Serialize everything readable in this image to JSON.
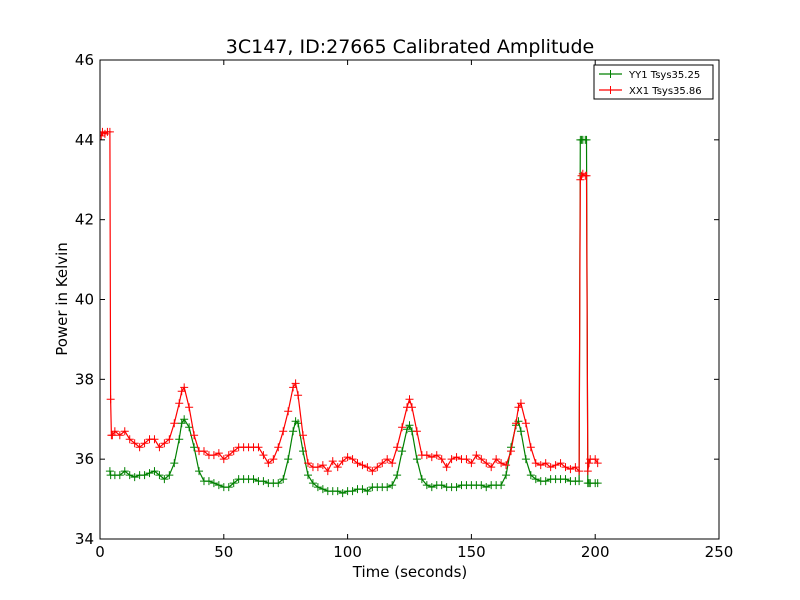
{
  "chart_data": {
    "type": "line",
    "title": "3C147, ID:27665 Calibrated Amplitude",
    "xlabel": "Time (seconds)",
    "ylabel": "Power in Kelvin",
    "xlim": [
      0,
      250
    ],
    "ylim": [
      34,
      46
    ],
    "xticks": [
      "0",
      "50",
      "100",
      "150",
      "200",
      "250"
    ],
    "yticks": [
      "34",
      "36",
      "38",
      "40",
      "42",
      "44",
      "46"
    ],
    "grid": false,
    "legend_position": "top-right",
    "marker": "plus",
    "series": [
      {
        "name": "YY1 Tsys35.25",
        "color": "#008000",
        "x": [
          4,
          4.3,
          6,
          8,
          10,
          12,
          14,
          16,
          18,
          20,
          22,
          24,
          26,
          28,
          30,
          32,
          33,
          34,
          36,
          38,
          40,
          42,
          44,
          46,
          48,
          50,
          52,
          54,
          56,
          58,
          60,
          62,
          64,
          66,
          68,
          70,
          72,
          74,
          76,
          78,
          79,
          80,
          82,
          84,
          86,
          88,
          90,
          92,
          94,
          96,
          98,
          100,
          102,
          104,
          106,
          108,
          110,
          112,
          114,
          116,
          118,
          120,
          122,
          124,
          125,
          126,
          128,
          130,
          132,
          134,
          136,
          138,
          140,
          142,
          144,
          146,
          148,
          150,
          152,
          154,
          156,
          158,
          160,
          162,
          164,
          166,
          168,
          169,
          170,
          172,
          174,
          176,
          178,
          180,
          182,
          184,
          186,
          188,
          190,
          192,
          193.5,
          194,
          194.5,
          195,
          196,
          196.5,
          197,
          197.5,
          198,
          200,
          201
        ],
        "y": [
          35.7,
          35.6,
          35.6,
          35.6,
          35.7,
          35.6,
          35.55,
          35.6,
          35.6,
          35.65,
          35.7,
          35.6,
          35.5,
          35.6,
          35.9,
          36.5,
          36.9,
          37.0,
          36.8,
          36.3,
          35.7,
          35.45,
          35.45,
          35.4,
          35.35,
          35.3,
          35.3,
          35.4,
          35.5,
          35.5,
          35.5,
          35.5,
          35.45,
          35.45,
          35.4,
          35.4,
          35.4,
          35.5,
          36.0,
          36.7,
          36.95,
          36.9,
          36.2,
          35.6,
          35.4,
          35.3,
          35.25,
          35.2,
          35.2,
          35.2,
          35.15,
          35.2,
          35.2,
          35.25,
          35.25,
          35.2,
          35.3,
          35.3,
          35.3,
          35.3,
          35.35,
          35.6,
          36.2,
          36.75,
          36.85,
          36.7,
          36.0,
          35.5,
          35.35,
          35.3,
          35.35,
          35.35,
          35.3,
          35.3,
          35.3,
          35.35,
          35.35,
          35.35,
          35.35,
          35.35,
          35.3,
          35.35,
          35.35,
          35.35,
          35.6,
          36.3,
          36.85,
          36.95,
          36.7,
          36.0,
          35.6,
          35.5,
          35.45,
          35.45,
          35.5,
          35.5,
          35.5,
          35.5,
          35.45,
          35.45,
          35.45,
          44.0,
          44.0,
          44.0,
          44.0,
          44.0,
          35.4,
          35.4,
          35.4,
          35.4,
          35.4
        ]
      },
      {
        "name": "XX1 Tsys35.86",
        "color": "#ff0000",
        "x": [
          0.5,
          1,
          2,
          3,
          4,
          4.3,
          4.6,
          5,
          6,
          8,
          10,
          12,
          14,
          16,
          18,
          20,
          22,
          24,
          26,
          28,
          30,
          32,
          33,
          34,
          36,
          38,
          40,
          42,
          44,
          46,
          48,
          50,
          52,
          54,
          56,
          58,
          60,
          62,
          64,
          66,
          68,
          70,
          72,
          74,
          76,
          78,
          79,
          80,
          82,
          84,
          86,
          88,
          90,
          92,
          94,
          96,
          98,
          100,
          102,
          104,
          106,
          108,
          110,
          112,
          114,
          116,
          118,
          120,
          122,
          124,
          125,
          126,
          128,
          130,
          132,
          134,
          136,
          138,
          140,
          142,
          144,
          146,
          148,
          150,
          152,
          154,
          156,
          158,
          160,
          162,
          164,
          166,
          168,
          169,
          170,
          172,
          174,
          176,
          178,
          180,
          182,
          184,
          186,
          188,
          190,
          192,
          193.5,
          194,
          194.5,
          195,
          196,
          196.5,
          197,
          197.5,
          198,
          200,
          201
        ],
        "y": [
          44.1,
          44.2,
          44.15,
          44.2,
          44.2,
          37.5,
          36.6,
          36.6,
          36.7,
          36.6,
          36.7,
          36.5,
          36.4,
          36.3,
          36.4,
          36.5,
          36.5,
          36.3,
          36.4,
          36.5,
          36.9,
          37.4,
          37.7,
          37.8,
          37.3,
          36.6,
          36.2,
          36.2,
          36.1,
          36.1,
          36.15,
          36.0,
          36.1,
          36.2,
          36.3,
          36.3,
          36.3,
          36.3,
          36.3,
          36.1,
          35.9,
          36.0,
          36.3,
          36.7,
          37.2,
          37.8,
          37.9,
          37.6,
          36.6,
          35.9,
          35.8,
          35.8,
          35.85,
          35.7,
          35.95,
          35.8,
          35.95,
          36.05,
          36.0,
          35.9,
          35.85,
          35.8,
          35.7,
          35.8,
          35.9,
          36.0,
          35.9,
          36.3,
          36.8,
          37.3,
          37.5,
          37.3,
          36.7,
          36.1,
          36.1,
          36.05,
          36.1,
          36.0,
          35.8,
          36.0,
          36.05,
          36.0,
          36.0,
          35.9,
          36.1,
          36.0,
          35.9,
          35.8,
          36.0,
          35.9,
          35.85,
          36.2,
          36.9,
          37.3,
          37.4,
          36.9,
          36.3,
          35.9,
          35.85,
          35.9,
          35.8,
          35.85,
          35.9,
          35.8,
          35.75,
          35.8,
          35.7,
          43.0,
          43.1,
          43.15,
          43.1,
          43.1,
          35.7,
          35.9,
          36.0,
          36.0,
          35.9
        ]
      }
    ]
  }
}
